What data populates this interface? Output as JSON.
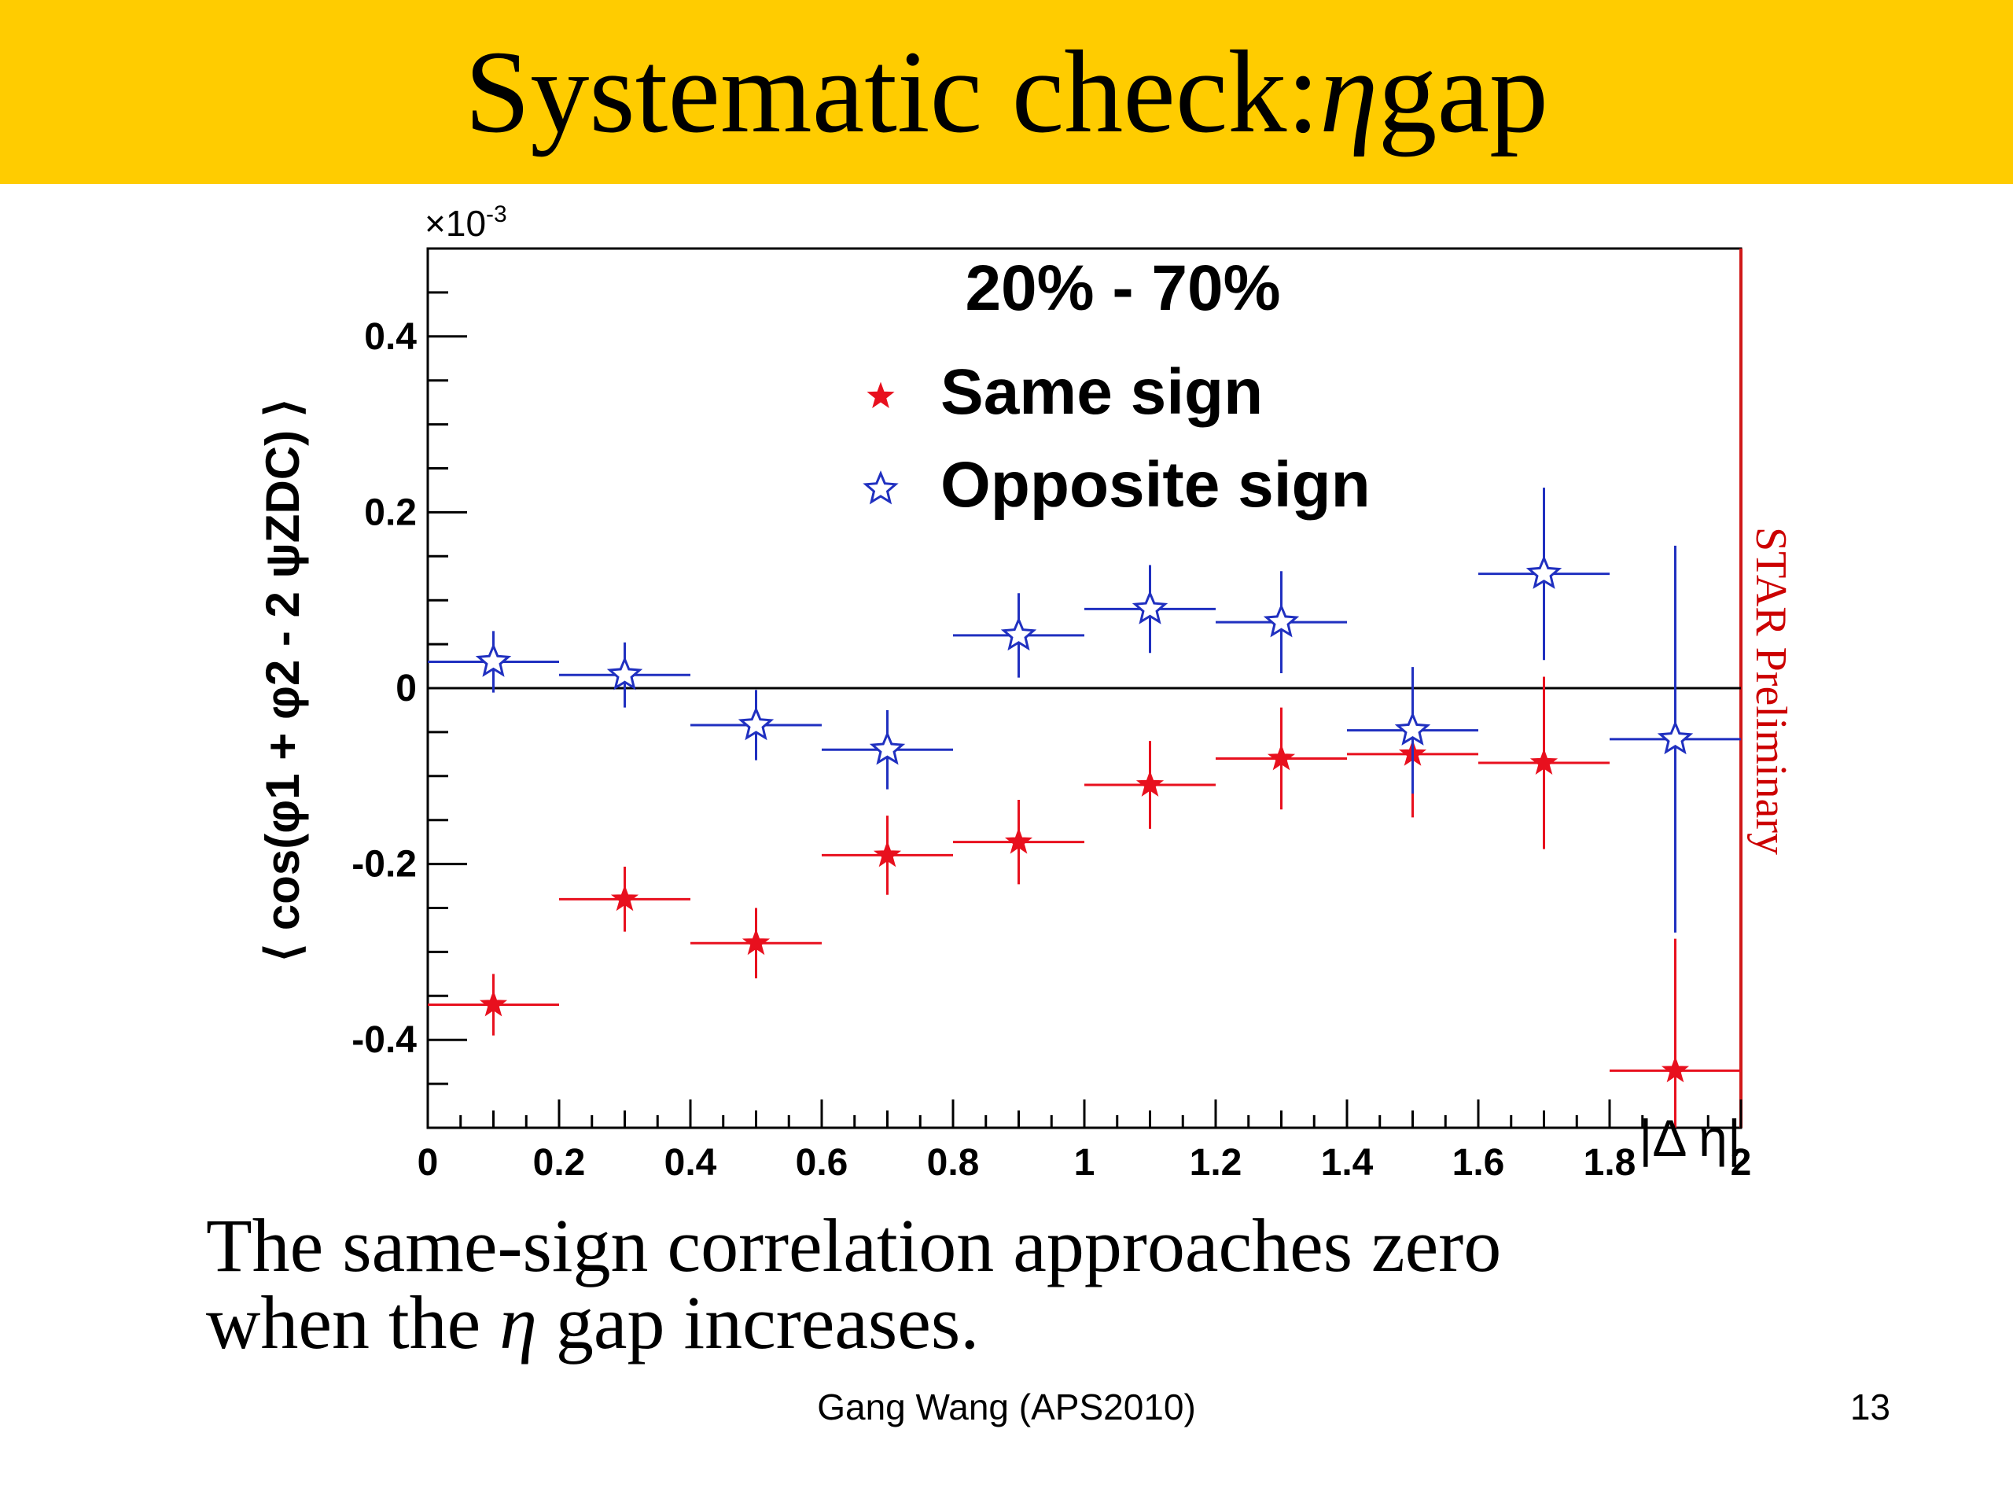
{
  "slide": {
    "title_prefix": "Systematic check: ",
    "title_eta": "η",
    "title_suffix": " gap",
    "caption_line1": "The same-sign correlation approaches zero",
    "caption_line2_prefix": "when the ",
    "caption_eta": "η",
    "caption_line2_suffix": " gap increases.",
    "footer": "Gang Wang (APS2010)",
    "page_number": "13"
  },
  "chart_data": {
    "type": "scatter",
    "title": "20% - 70%",
    "xlabel": "|Δ η|",
    "ylabel": "⟨ cos(φ1 + φ2 - 2 ψZDC) ⟩",
    "y_multiplier": "×10-3",
    "watermark": "STAR Preliminary",
    "xlim": [
      0,
      2
    ],
    "ylim": [
      -0.5,
      0.5
    ],
    "x_ticks": [
      "0",
      "0.2",
      "0.4",
      "0.6",
      "0.8",
      "1",
      "1.2",
      "1.4",
      "1.6",
      "1.8",
      "2"
    ],
    "y_ticks": [
      "-0.4",
      "-0.2",
      "0",
      "0.2",
      "0.4"
    ],
    "legend_position": "top-center",
    "series": [
      {
        "name": "Same sign",
        "color": "#e8101e",
        "marker": "filled-star",
        "x": [
          0.1,
          0.3,
          0.5,
          0.7,
          0.9,
          1.1,
          1.3,
          1.5,
          1.7,
          1.9
        ],
        "y": [
          -0.36,
          -0.24,
          -0.29,
          -0.19,
          -0.175,
          -0.11,
          -0.08,
          -0.075,
          -0.085,
          -0.435
        ],
        "x_err": [
          0.1,
          0.1,
          0.1,
          0.1,
          0.1,
          0.1,
          0.1,
          0.1,
          0.1,
          0.1
        ],
        "y_err": [
          0.035,
          0.037,
          0.04,
          0.045,
          0.048,
          0.05,
          0.058,
          0.072,
          0.098,
          0.15
        ]
      },
      {
        "name": "Opposite sign",
        "color": "#2030c0",
        "marker": "open-star",
        "x": [
          0.1,
          0.3,
          0.5,
          0.7,
          0.9,
          1.1,
          1.3,
          1.5,
          1.7,
          1.9
        ],
        "y": [
          0.03,
          0.015,
          -0.042,
          -0.07,
          0.06,
          0.09,
          0.075,
          -0.048,
          0.13,
          -0.058
        ],
        "x_err": [
          0.1,
          0.1,
          0.1,
          0.1,
          0.1,
          0.1,
          0.1,
          0.1,
          0.1,
          0.1
        ],
        "y_err": [
          0.035,
          0.037,
          0.04,
          0.045,
          0.048,
          0.05,
          0.058,
          0.072,
          0.098,
          0.22
        ]
      }
    ]
  },
  "colors": {
    "title_bar": "#ffcc00",
    "frame_right_edge": "#d01818",
    "watermark": "#cc0000"
  }
}
